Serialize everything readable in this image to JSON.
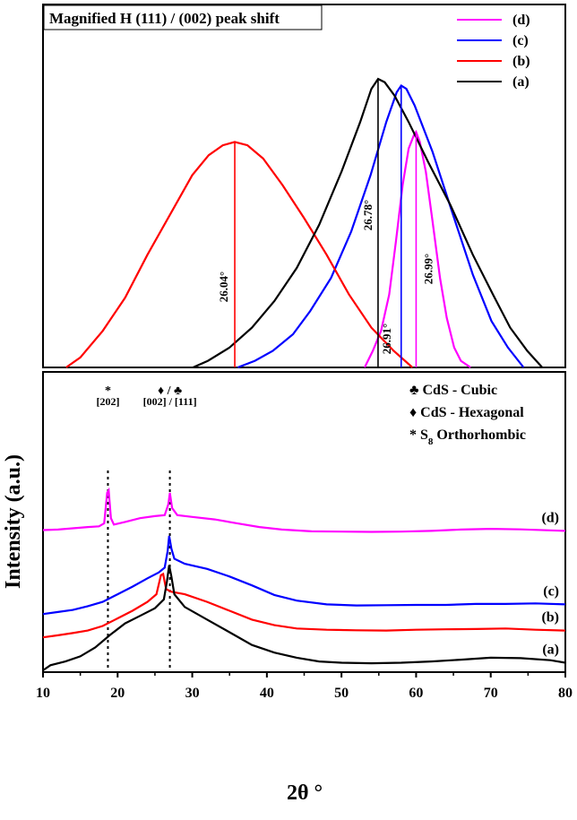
{
  "chart_data": [
    {
      "type": "line",
      "title": "Magnified H (111) / (002) peak shift",
      "legend_position": "top-right",
      "legend": [
        {
          "label": "(d)",
          "color": "#ff00ff"
        },
        {
          "label": "(c)",
          "color": "#0000ff"
        },
        {
          "label": "(b)",
          "color": "#ff0000"
        },
        {
          "label": "(a)",
          "color": "#000000"
        }
      ],
      "series": [
        {
          "name": "(d)",
          "color": "#ff00ff",
          "peak_label": "26.99°",
          "points": [
            [
              53.1,
              0.0
            ],
            [
              54.2,
              0.05
            ],
            [
              55.3,
              0.11
            ],
            [
              56.4,
              0.22
            ],
            [
              57.3,
              0.38
            ],
            [
              58.2,
              0.55
            ],
            [
              59.0,
              0.66
            ],
            [
              59.7,
              0.7
            ],
            [
              60.0,
              0.71
            ],
            [
              60.5,
              0.68
            ],
            [
              61.3,
              0.59
            ],
            [
              62.2,
              0.44
            ],
            [
              63.2,
              0.27
            ],
            [
              64.1,
              0.15
            ],
            [
              65.1,
              0.06
            ],
            [
              66.0,
              0.02
            ],
            [
              67.3,
              0.0
            ]
          ],
          "peak_x": 60.0
        },
        {
          "name": "(c)",
          "color": "#0000ff",
          "peak_label": "26.91°",
          "points": [
            [
              36.1,
              0.0
            ],
            [
              38.4,
              0.02
            ],
            [
              40.8,
              0.05
            ],
            [
              43.5,
              0.1
            ],
            [
              45.8,
              0.17
            ],
            [
              48.6,
              0.27
            ],
            [
              51.3,
              0.41
            ],
            [
              53.9,
              0.58
            ],
            [
              56.0,
              0.74
            ],
            [
              57.4,
              0.83
            ],
            [
              58.0,
              0.85
            ],
            [
              58.7,
              0.84
            ],
            [
              59.8,
              0.79
            ],
            [
              62.2,
              0.65
            ],
            [
              65.1,
              0.45
            ],
            [
              67.6,
              0.28
            ],
            [
              70.1,
              0.14
            ],
            [
              72.3,
              0.06
            ],
            [
              74.4,
              0.0
            ]
          ],
          "peak_x": 58.0
        },
        {
          "name": "(b)",
          "color": "#ff0000",
          "peak_label": "26.04°",
          "points": [
            [
              13.1,
              0.0
            ],
            [
              15.0,
              0.03
            ],
            [
              18.0,
              0.11
            ],
            [
              21.0,
              0.21
            ],
            [
              24.0,
              0.34
            ],
            [
              27.0,
              0.46
            ],
            [
              30.0,
              0.58
            ],
            [
              32.2,
              0.64
            ],
            [
              34.1,
              0.67
            ],
            [
              35.7,
              0.68
            ],
            [
              37.4,
              0.67
            ],
            [
              39.5,
              0.63
            ],
            [
              42.1,
              0.55
            ],
            [
              45.0,
              0.45
            ],
            [
              48.0,
              0.34
            ],
            [
              51.0,
              0.22
            ],
            [
              54.0,
              0.12
            ],
            [
              57.0,
              0.05
            ],
            [
              59.5,
              0.0
            ]
          ],
          "peak_x": 35.7
        },
        {
          "name": "(a)",
          "color": "#000000",
          "peak_label": "26.78°",
          "points": [
            [
              30.1,
              0.0
            ],
            [
              32.1,
              0.02
            ],
            [
              35.0,
              0.06
            ],
            [
              38.0,
              0.12
            ],
            [
              41.0,
              0.2
            ],
            [
              44.0,
              0.3
            ],
            [
              47.0,
              0.43
            ],
            [
              50.0,
              0.59
            ],
            [
              52.5,
              0.74
            ],
            [
              54.0,
              0.84
            ],
            [
              54.9,
              0.87
            ],
            [
              55.8,
              0.86
            ],
            [
              57.1,
              0.82
            ],
            [
              59.0,
              0.74
            ],
            [
              61.6,
              0.62
            ],
            [
              64.6,
              0.49
            ],
            [
              67.6,
              0.34
            ],
            [
              70.3,
              0.22
            ],
            [
              72.6,
              0.12
            ],
            [
              74.9,
              0.05
            ],
            [
              76.9,
              0.0
            ]
          ],
          "peak_x": 54.9
        }
      ],
      "peak_labels": [
        {
          "text": "26.04°",
          "series": "(b)"
        },
        {
          "text": "26.78°",
          "series": "(a)"
        },
        {
          "text": "26.91°",
          "series": "(c)"
        },
        {
          "text": "26.99°",
          "series": "(d)"
        }
      ],
      "xlim": [
        10,
        80
      ],
      "ylim": [
        0,
        1
      ]
    },
    {
      "type": "line",
      "xlabel": "2θ °",
      "ylabel": "Intensity (a.u.)",
      "xlim": [
        10,
        80
      ],
      "ylim": [
        0,
        1
      ],
      "x_ticks": [
        10,
        20,
        30,
        40,
        50,
        60,
        70,
        80
      ],
      "legend_position": "top-right",
      "legend": [
        {
          "symbol": "♣",
          "label": "CdS - Cubic"
        },
        {
          "symbol": "♦",
          "label": "CdS - Hexagonal"
        },
        {
          "symbol": "*",
          "label": "S",
          "subscript": "8",
          "suffix": " Orthorhombic"
        }
      ],
      "peak_annotations": [
        {
          "symbol": "*",
          "hkl": "[202]",
          "x": 18.7
        },
        {
          "symbol": "♦  /  ♣",
          "hkl": "[002] / [111]",
          "x": 27.0
        }
      ],
      "reference_lines_x": [
        18.7,
        27.0
      ],
      "series": [
        {
          "name": "(d)",
          "color": "#ff00ff",
          "points": [
            [
              10,
              0.553
            ],
            [
              12,
              0.555
            ],
            [
              14,
              0.56
            ],
            [
              16,
              0.565
            ],
            [
              17.5,
              0.568
            ],
            [
              18.2,
              0.58
            ],
            [
              18.6,
              0.7
            ],
            [
              18.8,
              0.71
            ],
            [
              19.1,
              0.6
            ],
            [
              19.5,
              0.575
            ],
            [
              21,
              0.585
            ],
            [
              23,
              0.6
            ],
            [
              25,
              0.608
            ],
            [
              26.3,
              0.612
            ],
            [
              26.8,
              0.655
            ],
            [
              27.0,
              0.7
            ],
            [
              27.3,
              0.64
            ],
            [
              28,
              0.612
            ],
            [
              30,
              0.605
            ],
            [
              33,
              0.595
            ],
            [
              36,
              0.58
            ],
            [
              39,
              0.565
            ],
            [
              42,
              0.555
            ],
            [
              46,
              0.548
            ],
            [
              50,
              0.547
            ],
            [
              54,
              0.546
            ],
            [
              58,
              0.547
            ],
            [
              62,
              0.55
            ],
            [
              66,
              0.555
            ],
            [
              70,
              0.558
            ],
            [
              74,
              0.556
            ],
            [
              78,
              0.552
            ],
            [
              80,
              0.55
            ]
          ]
        },
        {
          "name": "(c)",
          "color": "#0000ff",
          "points": [
            [
              10,
              0.222
            ],
            [
              12,
              0.23
            ],
            [
              14,
              0.238
            ],
            [
              16,
              0.253
            ],
            [
              18,
              0.27
            ],
            [
              20,
              0.3
            ],
            [
              22,
              0.33
            ],
            [
              24,
              0.363
            ],
            [
              25.5,
              0.386
            ],
            [
              26.3,
              0.405
            ],
            [
              26.7,
              0.47
            ],
            [
              26.9,
              0.53
            ],
            [
              27.2,
              0.48
            ],
            [
              27.6,
              0.44
            ],
            [
              29,
              0.42
            ],
            [
              32,
              0.4
            ],
            [
              35,
              0.37
            ],
            [
              38,
              0.335
            ],
            [
              41,
              0.297
            ],
            [
              44,
              0.275
            ],
            [
              48,
              0.26
            ],
            [
              52,
              0.256
            ],
            [
              56,
              0.257
            ],
            [
              60,
              0.258
            ],
            [
              64,
              0.258
            ],
            [
              68,
              0.262
            ],
            [
              72,
              0.262
            ],
            [
              76,
              0.264
            ],
            [
              80,
              0.26
            ]
          ]
        },
        {
          "name": "(b)",
          "color": "#ff0000",
          "points": [
            [
              10,
              0.13
            ],
            [
              12,
              0.138
            ],
            [
              14,
              0.147
            ],
            [
              16,
              0.157
            ],
            [
              18,
              0.175
            ],
            [
              20,
              0.205
            ],
            [
              22,
              0.235
            ],
            [
              24,
              0.27
            ],
            [
              25.2,
              0.3
            ],
            [
              25.8,
              0.375
            ],
            [
              26.1,
              0.38
            ],
            [
              26.5,
              0.32
            ],
            [
              27.2,
              0.31
            ],
            [
              29,
              0.3
            ],
            [
              32,
              0.27
            ],
            [
              35,
              0.235
            ],
            [
              38,
              0.2
            ],
            [
              41,
              0.178
            ],
            [
              44,
              0.165
            ],
            [
              48,
              0.16
            ],
            [
              52,
              0.158
            ],
            [
              56,
              0.157
            ],
            [
              60,
              0.16
            ],
            [
              64,
              0.162
            ],
            [
              68,
              0.163
            ],
            [
              72,
              0.165
            ],
            [
              76,
              0.16
            ],
            [
              80,
              0.157
            ]
          ]
        },
        {
          "name": "(a)",
          "color": "#000000",
          "points": [
            [
              10,
              0.0
            ],
            [
              11,
              0.02
            ],
            [
              13,
              0.035
            ],
            [
              15,
              0.055
            ],
            [
              17,
              0.09
            ],
            [
              19,
              0.14
            ],
            [
              21,
              0.185
            ],
            [
              23,
              0.215
            ],
            [
              25,
              0.245
            ],
            [
              26.2,
              0.28
            ],
            [
              26.6,
              0.35
            ],
            [
              26.9,
              0.415
            ],
            [
              27.2,
              0.37
            ],
            [
              27.6,
              0.3
            ],
            [
              29,
              0.25
            ],
            [
              32,
              0.2
            ],
            [
              35,
              0.15
            ],
            [
              38,
              0.1
            ],
            [
              41,
              0.07
            ],
            [
              44,
              0.05
            ],
            [
              47,
              0.035
            ],
            [
              50,
              0.03
            ],
            [
              54,
              0.028
            ],
            [
              58,
              0.03
            ],
            [
              62,
              0.035
            ],
            [
              66,
              0.042
            ],
            [
              70,
              0.05
            ],
            [
              74,
              0.048
            ],
            [
              78,
              0.04
            ],
            [
              80,
              0.03
            ]
          ]
        }
      ],
      "series_labels": [
        "(d)",
        "(c)",
        "(b)",
        "(a)"
      ]
    }
  ]
}
